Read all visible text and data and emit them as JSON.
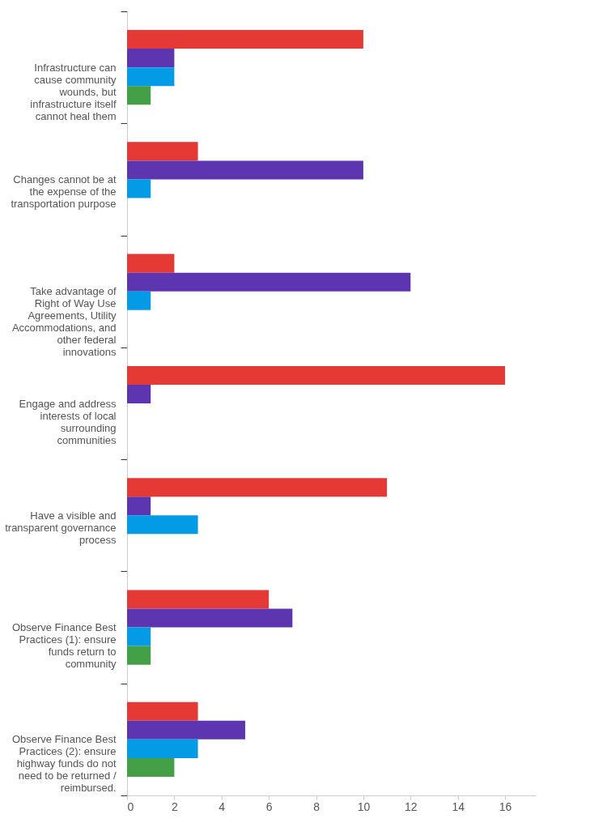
{
  "chart_data": {
    "type": "bar",
    "orientation": "horizontal",
    "categories": [
      "Infrastructure can cause community wounds, but infrastructure itself cannot heal them",
      "Changes cannot be at the expense of the transportation purpose",
      "Take advantage of Right of Way Use Agreements, Utility Accommodations, and other federal innovations",
      "Engage and address interests of local surrounding communities",
      "Have a visible and transparent governance process",
      "Observe Finance Best Practices (1): ensure funds return to community",
      "Observe Finance Best Practices (2): ensure highway funds do not need to be returned / reimbursed."
    ],
    "series": [
      {
        "color": "#e53935",
        "values": [
          10,
          3,
          2,
          16,
          11,
          6,
          3
        ]
      },
      {
        "color": "#5e35b1",
        "values": [
          2,
          10,
          12,
          1,
          1,
          7,
          5
        ]
      },
      {
        "color": "#039be5",
        "values": [
          2,
          1,
          1,
          0,
          3,
          1,
          3
        ]
      },
      {
        "color": "#43a047",
        "values": [
          1,
          0,
          0,
          0,
          0,
          1,
          2
        ]
      }
    ],
    "xlim": [
      0,
      17.3
    ],
    "xticks": [
      0,
      2,
      4,
      6,
      8,
      10,
      12,
      14,
      16
    ],
    "grid": false,
    "legend": false
  }
}
